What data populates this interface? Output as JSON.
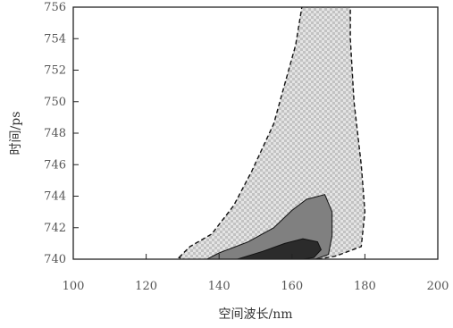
{
  "chart_data": {
    "type": "contour",
    "xlabel": "空间波长/nm",
    "ylabel": "时间/ps",
    "xlim": [
      100,
      200
    ],
    "ylim": [
      740,
      756
    ],
    "x_ticks": [
      100,
      120,
      140,
      160,
      180,
      200
    ],
    "x_tick_labels": [
      "100",
      "120",
      "140",
      "160",
      "180",
      "200"
    ],
    "y_ticks": [
      740,
      742,
      744,
      746,
      748,
      750,
      752,
      754,
      756
    ],
    "y_tick_labels": [
      "740",
      "742",
      "744",
      "746",
      "748",
      "750",
      "752",
      "754",
      "756"
    ],
    "grid": false,
    "levels": [
      {
        "name": "outer",
        "fill": "#d9d9d9",
        "pattern": "checker",
        "points": [
          [
            129,
            740.1
          ],
          [
            132,
            740.8
          ],
          [
            138,
            741.6
          ],
          [
            144,
            743.4
          ],
          [
            149,
            745.6
          ],
          [
            155,
            748.6
          ],
          [
            158,
            751.1
          ],
          [
            161,
            753.6
          ],
          [
            163,
            756.4
          ],
          [
            176,
            756.4
          ],
          [
            176,
            754.0
          ],
          [
            177,
            750.0
          ],
          [
            179,
            746.0
          ],
          [
            180,
            743.0
          ],
          [
            179,
            740.8
          ],
          [
            172,
            740.2
          ],
          [
            160,
            739.7
          ],
          [
            146,
            739.6
          ],
          [
            134,
            739.7
          ]
        ]
      },
      {
        "name": "middle",
        "fill": "#808080",
        "points": [
          [
            135,
            739.8
          ],
          [
            140,
            740.4
          ],
          [
            148,
            741.1
          ],
          [
            155,
            742.0
          ],
          [
            160,
            743.1
          ],
          [
            164,
            743.8
          ],
          [
            169,
            744.1
          ],
          [
            171,
            743.0
          ],
          [
            171,
            741.5
          ],
          [
            170,
            740.3
          ],
          [
            164,
            739.8
          ],
          [
            155,
            739.7
          ],
          [
            145,
            739.7
          ]
        ]
      },
      {
        "name": "inner",
        "fill": "#2b2b2b",
        "points": [
          [
            145,
            740.0
          ],
          [
            152,
            740.5
          ],
          [
            158,
            741.0
          ],
          [
            163,
            741.3
          ],
          [
            167,
            741.1
          ],
          [
            168,
            740.6
          ],
          [
            166,
            740.1
          ],
          [
            160,
            739.9
          ],
          [
            152,
            739.9
          ]
        ]
      }
    ]
  }
}
